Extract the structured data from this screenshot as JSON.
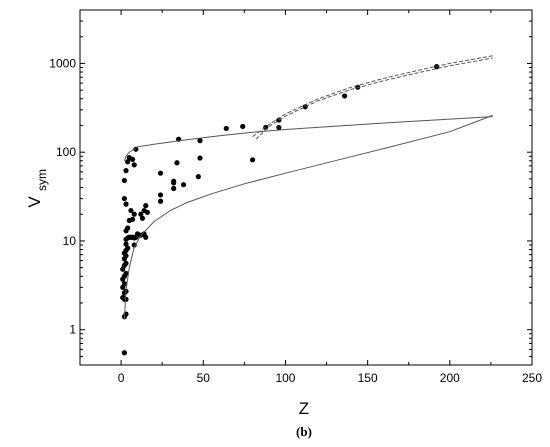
{
  "figure": {
    "caption": "(b)"
  },
  "chart_data": {
    "type": "scatter",
    "title": "",
    "xlabel": "Z",
    "ylabel_main": "V",
    "ylabel_sub": "sym",
    "xlim": [
      -25,
      250
    ],
    "ylim": [
      0.4,
      4000
    ],
    "yscale": "log",
    "grid": false,
    "legend": "none",
    "x_ticks": [
      0,
      50,
      100,
      150,
      200,
      250
    ],
    "x_tick_labels": [
      "0",
      "50",
      "100",
      "150",
      "200",
      "250"
    ],
    "y_ticks": [
      1,
      10,
      100,
      1000
    ],
    "y_tick_labels": [
      "1",
      "10",
      "100",
      "1000"
    ],
    "colors": {
      "points": "#000000",
      "curves": "#555555",
      "axes": "#000000"
    },
    "series": [
      {
        "style": "scatter",
        "points": [
          [
            2,
            0.55
          ],
          [
            2,
            1.4
          ],
          [
            3,
            1.5
          ],
          [
            2,
            2.2
          ],
          [
            3,
            2.2
          ],
          [
            1,
            2.3
          ],
          [
            2,
            2.6
          ],
          [
            3,
            2.7
          ],
          [
            1,
            3.0
          ],
          [
            2,
            3.3
          ],
          [
            1,
            3.7
          ],
          [
            2,
            4.0
          ],
          [
            3,
            4.3
          ],
          [
            1,
            4.8
          ],
          [
            2,
            5.3
          ],
          [
            3,
            5.6
          ],
          [
            2,
            6.3
          ],
          [
            3,
            6.8
          ],
          [
            2,
            7.3
          ],
          [
            3,
            7.8
          ],
          [
            4,
            8.3
          ],
          [
            3,
            9.2
          ],
          [
            3,
            10.4
          ],
          [
            4,
            10.8
          ],
          [
            5,
            11.0
          ],
          [
            6,
            11.0
          ],
          [
            7,
            11.0
          ],
          [
            8,
            10.8
          ],
          [
            8,
            9.0
          ],
          [
            9,
            11.0
          ],
          [
            10,
            11.7
          ],
          [
            10,
            12.0
          ],
          [
            14,
            12.0
          ],
          [
            12,
            11.6
          ],
          [
            15,
            11.0
          ],
          [
            3,
            13.0
          ],
          [
            4,
            14.0
          ],
          [
            5,
            17.0
          ],
          [
            7,
            17.5
          ],
          [
            8,
            20.0
          ],
          [
            12,
            20.0
          ],
          [
            13,
            18.0
          ],
          [
            14,
            22.0
          ],
          [
            16,
            21.0
          ],
          [
            15,
            25.0
          ],
          [
            2,
            30.0
          ],
          [
            3,
            26.0
          ],
          [
            6,
            22.0
          ],
          [
            2,
            48.0
          ],
          [
            3,
            62.0
          ],
          [
            4,
            78.0
          ],
          [
            5,
            87.0
          ],
          [
            7,
            83.0
          ],
          [
            8,
            72.0
          ],
          [
            9,
            108.0
          ],
          [
            24,
            28.0
          ],
          [
            24,
            33.0
          ],
          [
            24,
            58.0
          ],
          [
            32,
            39.0
          ],
          [
            32,
            45.0
          ],
          [
            32,
            47.0
          ],
          [
            34,
            76.0
          ],
          [
            35,
            140.0
          ],
          [
            38,
            43.0
          ],
          [
            47,
            53.0
          ],
          [
            48,
            86.0
          ],
          [
            48,
            135.0
          ],
          [
            64,
            185.0
          ],
          [
            74,
            195.0
          ],
          [
            80,
            82.0
          ],
          [
            88,
            190.0
          ],
          [
            96,
            190.0
          ],
          [
            96,
            230.0
          ],
          [
            112,
            325.0
          ],
          [
            136,
            430.0
          ],
          [
            144,
            540.0
          ],
          [
            192,
            920.0
          ]
        ]
      },
      {
        "style": "solid",
        "points": [
          [
            2,
            1.3
          ],
          [
            3,
            2.8
          ],
          [
            5,
            5
          ],
          [
            8,
            8.5
          ],
          [
            12,
            11.5
          ],
          [
            20,
            16.5
          ],
          [
            30,
            22
          ],
          [
            40,
            27
          ],
          [
            55,
            34
          ],
          [
            75,
            44
          ],
          [
            100,
            58
          ],
          [
            130,
            80
          ],
          [
            160,
            110
          ],
          [
            200,
            170
          ],
          [
            226,
            260
          ]
        ]
      },
      {
        "style": "solid",
        "points": [
          [
            2,
            80
          ],
          [
            3,
            90
          ],
          [
            5,
            100
          ],
          [
            10,
            115
          ],
          [
            20,
            123
          ],
          [
            40,
            138
          ],
          [
            60,
            153
          ],
          [
            80,
            168
          ],
          [
            100,
            180
          ],
          [
            130,
            196
          ],
          [
            160,
            213
          ],
          [
            200,
            236
          ],
          [
            226,
            252
          ]
        ]
      },
      {
        "style": "dashed",
        "points": [
          [
            80,
            150
          ],
          [
            90,
            205
          ],
          [
            100,
            270
          ],
          [
            120,
            400
          ],
          [
            140,
            540
          ],
          [
            160,
            680
          ],
          [
            180,
            830
          ],
          [
            200,
            1000
          ],
          [
            226,
            1220
          ]
        ]
      },
      {
        "style": "dashed",
        "points": [
          [
            82,
            140
          ],
          [
            90,
            195
          ],
          [
            100,
            255
          ],
          [
            120,
            380
          ],
          [
            140,
            510
          ],
          [
            160,
            640
          ],
          [
            180,
            780
          ],
          [
            200,
            940
          ],
          [
            226,
            1150
          ]
        ]
      }
    ]
  }
}
